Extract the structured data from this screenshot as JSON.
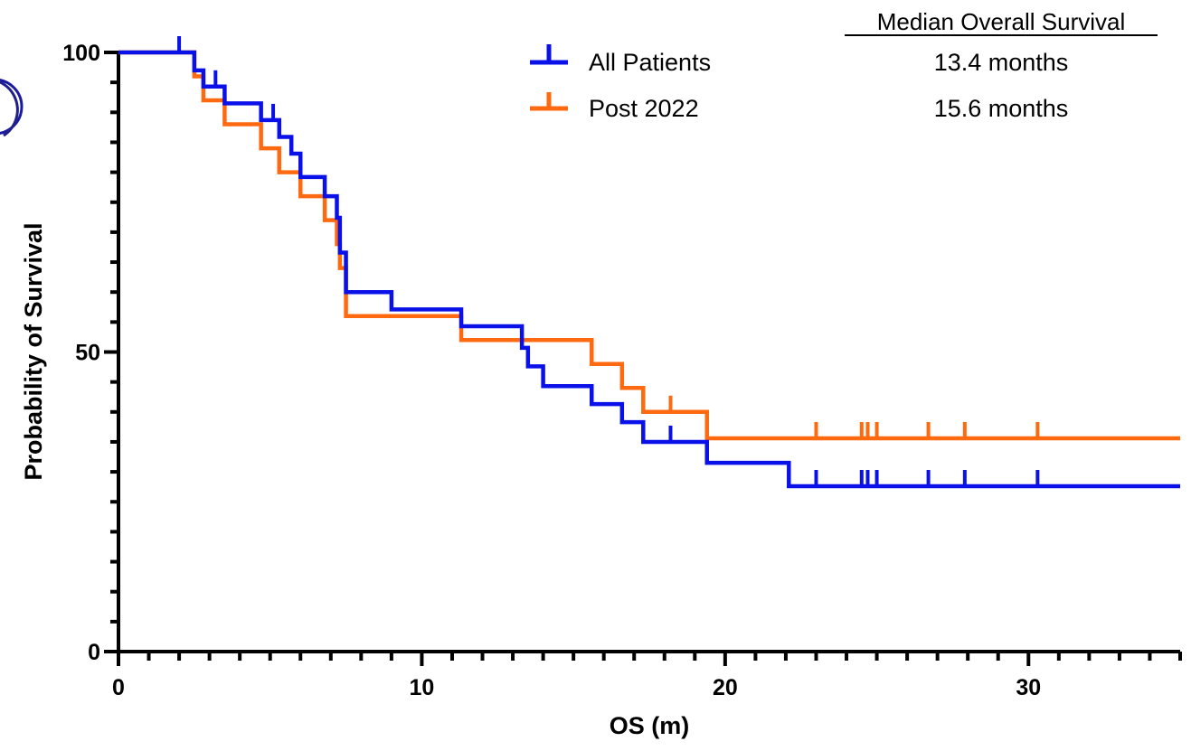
{
  "chart_data": {
    "type": "line",
    "subtype": "kaplan-meier",
    "title": "",
    "xlabel": "OS (m)",
    "ylabel": "Probability of Survival",
    "xlim": [
      0,
      35
    ],
    "ylim": [
      0,
      100
    ],
    "x_ticks": [
      0,
      10,
      20,
      30
    ],
    "y_ticks": [
      0,
      50,
      100
    ],
    "x_minor_step": 1,
    "y_minor_step": 5,
    "grid": false,
    "legend_position": "top-center",
    "legend_header": "Median  Overall Survival",
    "series": [
      {
        "name": "All  Patients",
        "median_label": "13.4 months",
        "color": "#0a10e8",
        "steps": [
          [
            0,
            100
          ],
          [
            2.5,
            97
          ],
          [
            2.8,
            94.3
          ],
          [
            3.5,
            91.5
          ],
          [
            4.7,
            88.7
          ],
          [
            5.3,
            85.9
          ],
          [
            5.7,
            83.1
          ],
          [
            6.0,
            79.2
          ],
          [
            6.8,
            76.0
          ],
          [
            7.2,
            72.4
          ],
          [
            7.3,
            66.6
          ],
          [
            7.5,
            60.0
          ],
          [
            9.0,
            57.1
          ],
          [
            11.3,
            54.3
          ],
          [
            13.3,
            50.7
          ],
          [
            13.5,
            47.6
          ],
          [
            14.0,
            44.3
          ],
          [
            15.6,
            41.3
          ],
          [
            16.6,
            38.3
          ],
          [
            17.3,
            35.0
          ],
          [
            19.4,
            31.5
          ],
          [
            22.1,
            27.6
          ]
        ],
        "end_x": 35,
        "censor_times": [
          2.0,
          3.2,
          5.1,
          18.2,
          23.0,
          24.5,
          24.7,
          25.0,
          26.7,
          27.9,
          30.3
        ]
      },
      {
        "name": "Post 2022",
        "median_label": "15.6 months",
        "color": "#ff6a10",
        "steps": [
          [
            0,
            100
          ],
          [
            2.5,
            96
          ],
          [
            2.8,
            92
          ],
          [
            3.5,
            88
          ],
          [
            4.7,
            84
          ],
          [
            5.3,
            80
          ],
          [
            6.0,
            76
          ],
          [
            6.8,
            72
          ],
          [
            7.2,
            68
          ],
          [
            7.3,
            64
          ],
          [
            7.5,
            56
          ],
          [
            11.3,
            52
          ],
          [
            15.6,
            48
          ],
          [
            16.6,
            44
          ],
          [
            17.3,
            40
          ],
          [
            19.4,
            35.6
          ]
        ],
        "end_x": 35,
        "censor_times": [
          18.2,
          23.0,
          24.5,
          24.7,
          25.0,
          26.7,
          27.9,
          30.3
        ]
      }
    ]
  }
}
